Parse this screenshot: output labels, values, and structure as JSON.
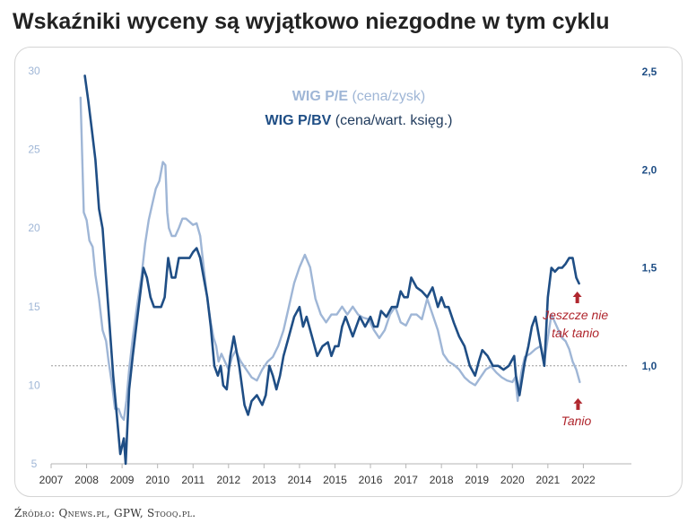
{
  "title": "Wskaźniki wyceny są wyjątkowo niezgodne w tym cyklu",
  "source": "Źródło: Qnews.pl, GPW, Stooq.pl.",
  "colors": {
    "pe": "#9fb6d6",
    "pbv": "#1f4e85",
    "annotation": "#b0272e",
    "refline": "#999999",
    "axis": "#b5b5b5"
  },
  "chart_data": {
    "type": "line",
    "title": "Wskaźniki wyceny są wyjątkowo niezgodne w tym cyklu",
    "x_ticks": [
      "2007",
      "2008",
      "2009",
      "2010",
      "2011",
      "2012",
      "2013",
      "2014",
      "2015",
      "2016",
      "2017",
      "2018",
      "2019",
      "2020",
      "2021",
      "2022"
    ],
    "x_range": [
      2007,
      2022.9
    ],
    "left_axis": {
      "range": [
        5,
        30
      ],
      "ticks": [
        "5",
        "10",
        "15",
        "20",
        "25",
        "30"
      ]
    },
    "right_axis": {
      "range": [
        0.5,
        2.5
      ],
      "ticks": [
        "1,0",
        "1,5",
        "2,0",
        "2,5"
      ]
    },
    "reference_line": {
      "axis": "right",
      "value": 1.0
    },
    "grid": false,
    "legend_position": "top-center",
    "series": [
      {
        "name": "WIG P/E",
        "legend_suffix": "(cena/zysk)",
        "axis": "left",
        "color": "#9fb6d6",
        "x": [
          2007.83,
          2007.92,
          2008.0,
          2008.08,
          2008.17,
          2008.25,
          2008.35,
          2008.45,
          2008.55,
          2008.62,
          2008.72,
          2008.8,
          2008.9,
          2008.98,
          2009.05,
          2009.12,
          2009.2,
          2009.3,
          2009.42,
          2009.55,
          2009.65,
          2009.75,
          2009.85,
          2009.95,
          2010.05,
          2010.15,
          2010.22,
          2010.27,
          2010.32,
          2010.4,
          2010.5,
          2010.6,
          2010.7,
          2010.8,
          2010.9,
          2011.0,
          2011.1,
          2011.2,
          2011.3,
          2011.4,
          2011.5,
          2011.58,
          2011.65,
          2011.72,
          2011.8,
          2011.9,
          2012.0,
          2012.1,
          2012.2,
          2012.35,
          2012.5,
          2012.65,
          2012.8,
          2012.95,
          2013.1,
          2013.25,
          2013.4,
          2013.55,
          2013.7,
          2013.85,
          2014.0,
          2014.15,
          2014.3,
          2014.45,
          2014.6,
          2014.75,
          2014.9,
          2015.05,
          2015.2,
          2015.35,
          2015.5,
          2015.65,
          2015.8,
          2015.95,
          2016.1,
          2016.25,
          2016.4,
          2016.55,
          2016.7,
          2016.85,
          2017.0,
          2017.15,
          2017.3,
          2017.45,
          2017.6,
          2017.75,
          2017.9,
          2018.05,
          2018.2,
          2018.35,
          2018.5,
          2018.65,
          2018.8,
          2018.95,
          2019.1,
          2019.25,
          2019.4,
          2019.55,
          2019.7,
          2019.85,
          2020.0,
          2020.08,
          2020.15,
          2020.25,
          2020.35,
          2020.5,
          2020.65,
          2020.8,
          2020.9,
          2021.0,
          2021.1,
          2021.2,
          2021.3,
          2021.4,
          2021.5,
          2021.6,
          2021.7,
          2021.8,
          2021.9
        ],
        "values": [
          28.3,
          21.0,
          20.5,
          19.2,
          18.8,
          17.0,
          15.5,
          13.5,
          12.8,
          11.5,
          10.0,
          8.5,
          8.5,
          8.0,
          7.8,
          9.0,
          11.0,
          13.0,
          15.0,
          17.0,
          19.0,
          20.5,
          21.5,
          22.5,
          23.0,
          24.2,
          24.0,
          21.0,
          20.0,
          19.5,
          19.5,
          20.0,
          20.6,
          20.6,
          20.4,
          20.2,
          20.3,
          19.5,
          17.5,
          15.5,
          14.0,
          13.0,
          12.5,
          11.5,
          12.0,
          11.5,
          11.0,
          11.8,
          12.2,
          11.5,
          11.0,
          10.5,
          10.3,
          11.0,
          11.5,
          11.8,
          12.5,
          13.5,
          15.0,
          16.5,
          17.5,
          18.3,
          17.5,
          15.5,
          14.5,
          14.0,
          14.5,
          14.5,
          15.0,
          14.5,
          15.0,
          14.5,
          14.3,
          14.2,
          13.5,
          13.0,
          13.5,
          14.5,
          15.0,
          14.0,
          13.8,
          14.5,
          14.5,
          14.2,
          15.5,
          14.5,
          13.5,
          12.0,
          11.5,
          11.3,
          11.0,
          10.5,
          10.2,
          10.0,
          10.5,
          11.0,
          11.2,
          10.8,
          10.5,
          10.3,
          10.2,
          10.5,
          9.0,
          10.8,
          11.8,
          12.0,
          12.3,
          12.5,
          11.5,
          13.0,
          14.5,
          14.0,
          13.5,
          13.0,
          12.8,
          12.3,
          11.5,
          11.0,
          10.2
        ]
      },
      {
        "name": "WIG P/BV",
        "legend_suffix": "(cena/wart. księg.)",
        "axis": "right",
        "color": "#1f4e85",
        "x": [
          2007.95,
          2008.05,
          2008.15,
          2008.25,
          2008.35,
          2008.45,
          2008.55,
          2008.65,
          2008.75,
          2008.85,
          2008.95,
          2009.05,
          2009.1,
          2009.2,
          2009.3,
          2009.4,
          2009.5,
          2009.6,
          2009.7,
          2009.8,
          2009.9,
          2010.0,
          2010.1,
          2010.2,
          2010.3,
          2010.4,
          2010.5,
          2010.6,
          2010.7,
          2010.8,
          2010.9,
          2011.0,
          2011.1,
          2011.2,
          2011.3,
          2011.4,
          2011.5,
          2011.6,
          2011.7,
          2011.78,
          2011.85,
          2011.95,
          2012.05,
          2012.15,
          2012.3,
          2012.45,
          2012.55,
          2012.65,
          2012.8,
          2012.95,
          2013.05,
          2013.15,
          2013.25,
          2013.35,
          2013.45,
          2013.55,
          2013.7,
          2013.85,
          2014.0,
          2014.1,
          2014.2,
          2014.35,
          2014.5,
          2014.65,
          2014.8,
          2014.9,
          2015.0,
          2015.1,
          2015.2,
          2015.3,
          2015.4,
          2015.5,
          2015.6,
          2015.7,
          2015.85,
          2016.0,
          2016.1,
          2016.2,
          2016.3,
          2016.45,
          2016.6,
          2016.75,
          2016.85,
          2016.95,
          2017.05,
          2017.15,
          2017.3,
          2017.45,
          2017.6,
          2017.75,
          2017.9,
          2018.0,
          2018.1,
          2018.2,
          2018.35,
          2018.5,
          2018.65,
          2018.8,
          2018.95,
          2019.05,
          2019.15,
          2019.3,
          2019.45,
          2019.6,
          2019.75,
          2019.9,
          2020.05,
          2020.1,
          2020.2,
          2020.35,
          2020.45,
          2020.55,
          2020.65,
          2020.8,
          2020.9,
          2021.0,
          2021.1,
          2021.2,
          2021.3,
          2021.4,
          2021.5,
          2021.6,
          2021.7,
          2021.8,
          2021.88
        ],
        "values": [
          2.48,
          2.35,
          2.2,
          2.05,
          1.8,
          1.7,
          1.45,
          1.2,
          0.95,
          0.75,
          0.55,
          0.63,
          0.5,
          0.88,
          1.05,
          1.2,
          1.35,
          1.5,
          1.45,
          1.35,
          1.3,
          1.3,
          1.3,
          1.35,
          1.55,
          1.45,
          1.45,
          1.55,
          1.55,
          1.55,
          1.55,
          1.58,
          1.6,
          1.55,
          1.45,
          1.35,
          1.2,
          1.0,
          0.95,
          1.0,
          0.9,
          0.88,
          1.05,
          1.15,
          1.0,
          0.8,
          0.75,
          0.82,
          0.85,
          0.8,
          0.85,
          1.0,
          0.95,
          0.88,
          0.95,
          1.05,
          1.15,
          1.25,
          1.3,
          1.2,
          1.25,
          1.15,
          1.05,
          1.1,
          1.12,
          1.05,
          1.1,
          1.1,
          1.2,
          1.25,
          1.2,
          1.15,
          1.2,
          1.25,
          1.2,
          1.25,
          1.2,
          1.2,
          1.28,
          1.25,
          1.3,
          1.3,
          1.38,
          1.35,
          1.35,
          1.45,
          1.4,
          1.38,
          1.35,
          1.4,
          1.3,
          1.35,
          1.3,
          1.3,
          1.22,
          1.15,
          1.1,
          1.0,
          0.95,
          1.02,
          1.08,
          1.05,
          1.0,
          1.0,
          0.98,
          1.0,
          1.05,
          0.95,
          0.85,
          1.02,
          1.1,
          1.2,
          1.25,
          1.1,
          1.0,
          1.35,
          1.5,
          1.48,
          1.5,
          1.5,
          1.52,
          1.55,
          1.55,
          1.45,
          1.42
        ]
      }
    ],
    "annotations": [
      {
        "text_lines": [
          "Jeszcze nie",
          "tak tanio"
        ],
        "target_series": "WIG P/BV"
      },
      {
        "text_lines": [
          "Tanio"
        ],
        "target_series": "WIG P/E"
      }
    ]
  }
}
